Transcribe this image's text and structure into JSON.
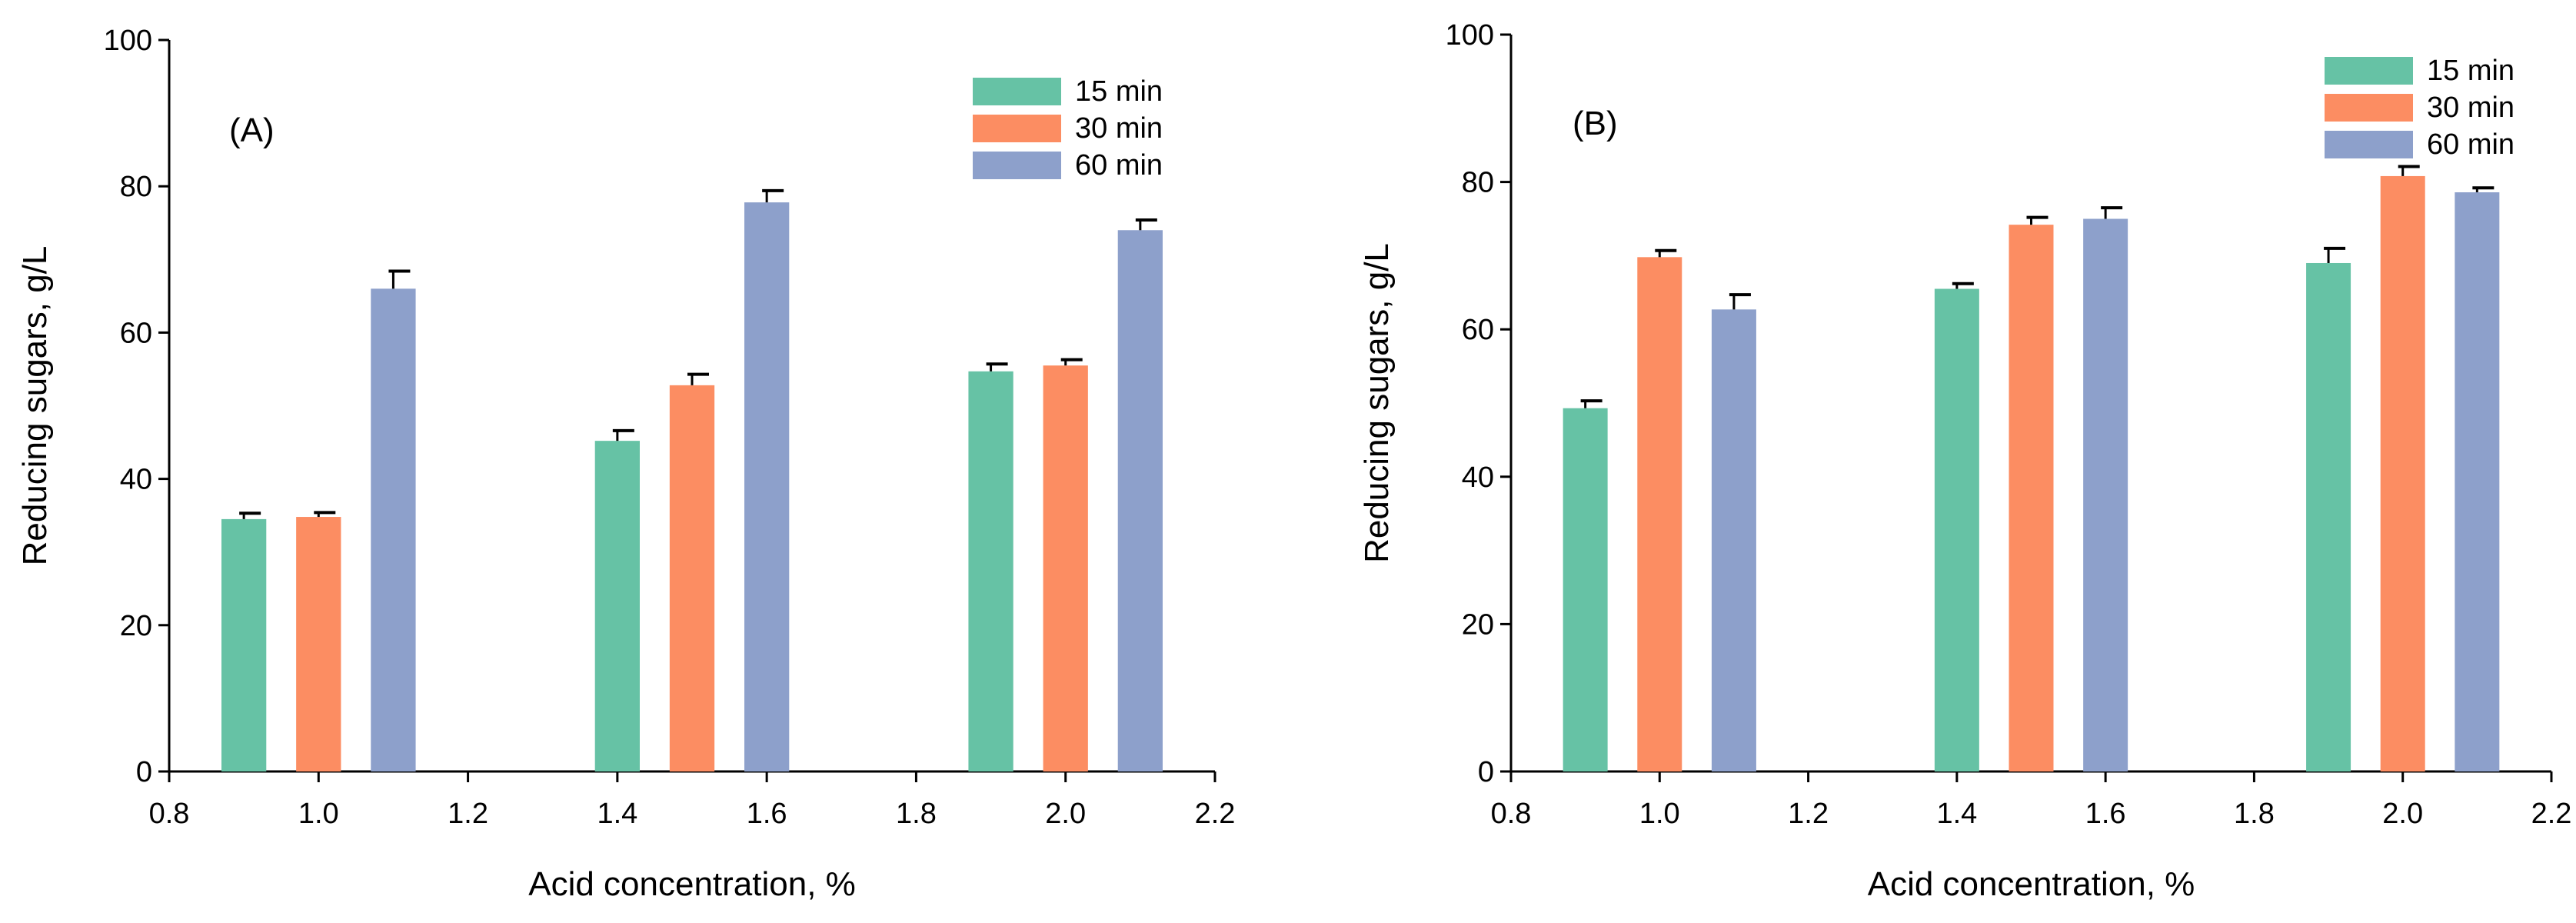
{
  "chart_data": [
    {
      "type": "bar",
      "panel_label": "(A)",
      "xlabel": "Acid concentration, %",
      "ylabel": "Reducing sugars, g/L",
      "xlim": [
        0.8,
        2.2
      ],
      "ylim": [
        0,
        100
      ],
      "x_ticks": [
        "0.8",
        "1.0",
        "1.2",
        "1.4",
        "1.6",
        "1.8",
        "2.0",
        "2.2"
      ],
      "y_ticks": [
        "0",
        "20",
        "40",
        "60",
        "80",
        "100"
      ],
      "x_tick_values": [
        0.8,
        1.0,
        1.2,
        1.4,
        1.6,
        1.8,
        2.0,
        2.2
      ],
      "y_tick_values": [
        0,
        20,
        40,
        60,
        80,
        100
      ],
      "categories": [
        1.0,
        1.5,
        2.0
      ],
      "legend_position": "top-right",
      "series": [
        {
          "name": "15 min",
          "color": "#66c2a5",
          "x": [
            0.9,
            1.4,
            1.9
          ],
          "values": [
            34.5,
            45.2,
            54.7
          ],
          "errors": [
            0.8,
            1.4,
            1.0
          ]
        },
        {
          "name": "30 min",
          "color": "#fc8d62",
          "x": [
            1.0,
            1.5,
            2.0
          ],
          "values": [
            34.8,
            52.8,
            55.5
          ],
          "errors": [
            0.6,
            1.5,
            0.8
          ]
        },
        {
          "name": "60  min",
          "color": "#8da0cb",
          "x": [
            1.1,
            1.6,
            2.1
          ],
          "values": [
            66.0,
            77.8,
            74.0
          ],
          "errors": [
            2.4,
            1.6,
            1.4
          ]
        }
      ]
    },
    {
      "type": "bar",
      "panel_label": "(B)",
      "xlabel": "Acid concentration, %",
      "ylabel": "Reducing sugars, g/L",
      "xlim": [
        0.8,
        2.2
      ],
      "ylim": [
        0,
        100
      ],
      "x_ticks": [
        "0.8",
        "1.0",
        "1.2",
        "1.4",
        "1.6",
        "1.8",
        "2.0",
        "2.2"
      ],
      "y_ticks": [
        "0",
        "20",
        "40",
        "60",
        "80",
        "100"
      ],
      "x_tick_values": [
        0.8,
        1.0,
        1.2,
        1.4,
        1.6,
        1.8,
        2.0,
        2.2
      ],
      "y_tick_values": [
        0,
        20,
        40,
        60,
        80,
        100
      ],
      "categories": [
        1.0,
        1.5,
        2.0
      ],
      "legend_position": "top-right",
      "series": [
        {
          "name": "15 min",
          "color": "#66c2a5",
          "x": [
            0.9,
            1.4,
            1.9
          ],
          "values": [
            49.3,
            65.5,
            69.0
          ],
          "errors": [
            1.0,
            0.7,
            2.0
          ]
        },
        {
          "name": "30 min",
          "color": "#fc8d62",
          "x": [
            1.0,
            1.5,
            2.0
          ],
          "values": [
            69.8,
            74.2,
            80.8
          ],
          "errors": [
            0.9,
            1.0,
            1.3
          ]
        },
        {
          "name": "60 min",
          "color": "#8da0cb",
          "x": [
            1.1,
            1.6,
            2.1
          ],
          "values": [
            62.7,
            75.0,
            78.6
          ],
          "errors": [
            2.0,
            1.5,
            0.6
          ]
        }
      ]
    }
  ]
}
